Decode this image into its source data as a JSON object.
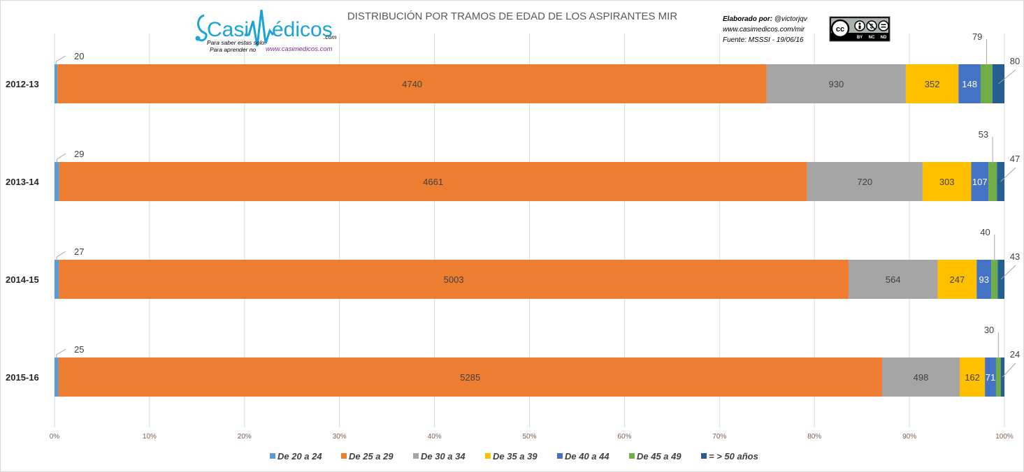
{
  "chart_data": {
    "type": "bar",
    "orientation": "horizontal",
    "stacked": "percent",
    "title": "DISTRIBUCIÓN POR TRAMOS DE EDAD DE LOS ASPIRANTES MIR",
    "categories": [
      "2012-13",
      "2013-14",
      "2014-15",
      "2015-16"
    ],
    "series": [
      {
        "name": "De 20 a 24",
        "color": "#5b9bd5",
        "values": [
          20,
          29,
          27,
          25
        ]
      },
      {
        "name": "De 25 a 29",
        "color": "#ed7d31",
        "values": [
          4740,
          4661,
          5003,
          5285
        ]
      },
      {
        "name": "De 30 a 34",
        "color": "#a5a5a5",
        "values": [
          930,
          720,
          564,
          498
        ]
      },
      {
        "name": "De 35 a 39",
        "color": "#ffc000",
        "values": [
          352,
          303,
          247,
          162
        ]
      },
      {
        "name": "De 40 a 44",
        "color": "#4472c4",
        "values": [
          148,
          107,
          93,
          71
        ]
      },
      {
        "name": "De 45 a 49",
        "color": "#70ad47",
        "values": [
          79,
          53,
          40,
          30
        ]
      },
      {
        "name": "= > 50 años",
        "color": "#255e91",
        "values": [
          80,
          47,
          43,
          24
        ]
      }
    ],
    "x_ticks": [
      "0%",
      "10%",
      "20%",
      "30%",
      "40%",
      "50%",
      "60%",
      "70%",
      "80%",
      "90%",
      "100%"
    ],
    "xlim": [
      0,
      100
    ],
    "grid": true,
    "legend_position": "bottom"
  },
  "logo": {
    "name_left": "Casi",
    "name_right": "édicos",
    "domain_suffix": ".com",
    "slogan_line1": "Para saber estas solo.",
    "slogan_line2": "Para aprender no",
    "url": "www.casimedicos.com"
  },
  "credits": {
    "label": "Elaborado  por:",
    "author": " @victorjqv",
    "site": "www.casimedicos.com/mir",
    "source": "Fuente: MSSSI  - 19/06/16"
  },
  "license_badge": {
    "icon": "cc-by-nc-nd-icon",
    "labels": [
      "BY",
      "NC",
      "ND"
    ]
  }
}
